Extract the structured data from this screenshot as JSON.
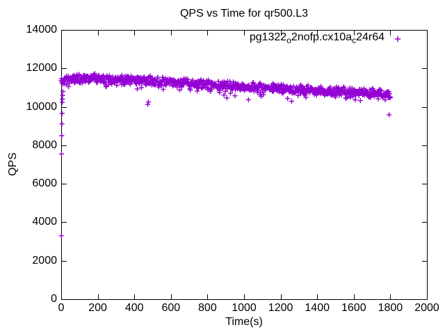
{
  "chart_data": {
    "type": "scatter",
    "title": "QPS vs Time for qr500.L3",
    "xlabel": "Time(s)",
    "ylabel": "QPS",
    "xlim": [
      0,
      2000
    ],
    "ylim": [
      0,
      14000
    ],
    "xticks": [
      0,
      200,
      400,
      600,
      800,
      1000,
      1200,
      1400,
      1600,
      1800,
      2000
    ],
    "yticks": [
      0,
      2000,
      4000,
      6000,
      8000,
      10000,
      12000,
      14000
    ],
    "grid": false,
    "plot_border": true,
    "tick_style": "inward-mirrored",
    "legend_position": "top-right-inside",
    "background_color": "#ffffff",
    "axis_color": "#000000",
    "series": [
      {
        "name": "pg1322_o2nofp.cx10a_c24r64",
        "label_parts": [
          {
            "text": "pg1322"
          },
          {
            "text": "o",
            "sub": true
          },
          {
            "text": "2nofp.cx10a"
          },
          {
            "text": "c",
            "sub": true
          },
          {
            "text": "24r64"
          }
        ],
        "marker": {
          "shape": "plus",
          "color": "#9400D3",
          "half_size": 3.6,
          "stroke_width": 1.4
        },
        "sampling": {
          "x_start": 0,
          "x_end": 1800,
          "x_step": 2,
          "seed": 11
        },
        "trend": [
          [
            0,
            11350
          ],
          [
            50,
            11450
          ],
          [
            150,
            11500
          ],
          [
            250,
            11470
          ],
          [
            400,
            11400
          ],
          [
            600,
            11280
          ],
          [
            800,
            11150
          ],
          [
            1000,
            11030
          ],
          [
            1200,
            10930
          ],
          [
            1400,
            10830
          ],
          [
            1600,
            10760
          ],
          [
            1800,
            10660
          ]
        ],
        "noise": {
          "band": 280,
          "dip_prob": 0.08,
          "dip_max": 450
        },
        "outliers": [
          [
            1,
            3300
          ],
          [
            2,
            7550
          ],
          [
            3,
            8500
          ],
          [
            4,
            9120
          ],
          [
            5,
            9660
          ],
          [
            6,
            10240
          ],
          [
            7,
            10400
          ],
          [
            8,
            10600
          ],
          [
            9,
            10800
          ],
          [
            473,
            10130
          ],
          [
            477,
            10260
          ],
          [
            1793,
            9590
          ]
        ]
      }
    ]
  }
}
